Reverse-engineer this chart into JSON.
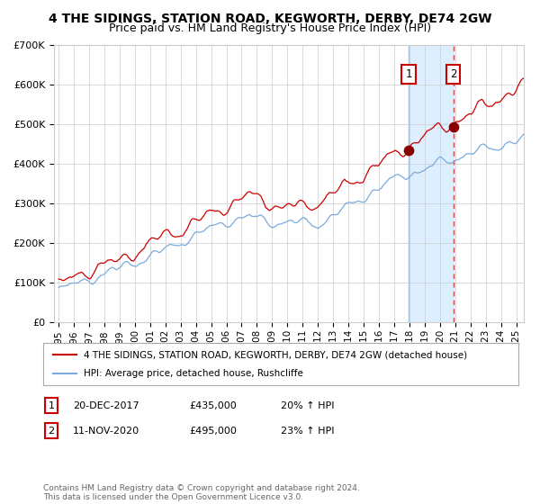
{
  "title": "4 THE SIDINGS, STATION ROAD, KEGWORTH, DERBY, DE74 2GW",
  "subtitle": "Price paid vs. HM Land Registry's House Price Index (HPI)",
  "ylim": [
    0,
    700000
  ],
  "xlim_start": 1994.7,
  "xlim_end": 2025.5,
  "yticks": [
    0,
    100000,
    200000,
    300000,
    400000,
    500000,
    600000,
    700000
  ],
  "ytick_labels": [
    "£0",
    "£100K",
    "£200K",
    "£300K",
    "£400K",
    "£500K",
    "£600K",
    "£700K"
  ],
  "xticks": [
    1995,
    1996,
    1997,
    1998,
    1999,
    2000,
    2001,
    2002,
    2003,
    2004,
    2005,
    2006,
    2007,
    2008,
    2009,
    2010,
    2011,
    2012,
    2013,
    2014,
    2015,
    2016,
    2017,
    2018,
    2019,
    2020,
    2021,
    2022,
    2023,
    2024,
    2025
  ],
  "red_line_color": "#cc0000",
  "blue_line_color": "#7aabdb",
  "point1_x": 2017.97,
  "point1_y": 435000,
  "point2_x": 2020.87,
  "point2_y": 495000,
  "vline1_x": 2017.97,
  "vline2_x": 2020.87,
  "shade_start": 2017.97,
  "shade_end": 2020.87,
  "shade_color": "#ddeeff",
  "legend_line1": "4 THE SIDINGS, STATION ROAD, KEGWORTH, DERBY, DE74 2GW (detached house)",
  "legend_line2": "HPI: Average price, detached house, Rushcliffe",
  "annotation1_label": "1",
  "annotation1_date": "20-DEC-2017",
  "annotation1_price": "£435,000",
  "annotation1_hpi": "20% ↑ HPI",
  "annotation2_label": "2",
  "annotation2_date": "11-NOV-2020",
  "annotation2_price": "£495,000",
  "annotation2_hpi": "23% ↑ HPI",
  "footer": "Contains HM Land Registry data © Crown copyright and database right 2024.\nThis data is licensed under the Open Government Licence v3.0.",
  "bg_color": "#ffffff",
  "grid_color": "#cccccc"
}
